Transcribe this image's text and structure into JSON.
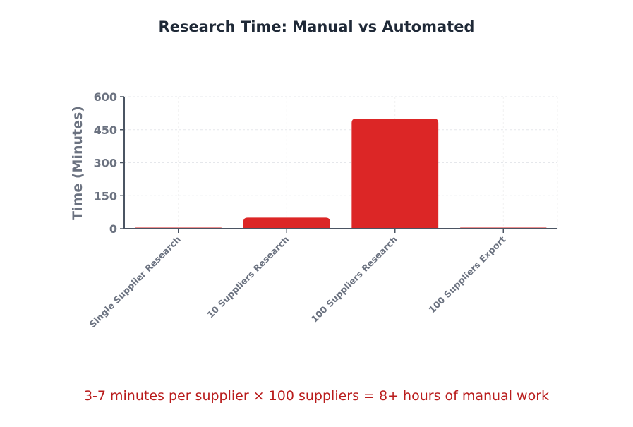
{
  "chart_data": {
    "type": "bar",
    "title": "Research Time: Manual vs Automated",
    "xlabel": "",
    "ylabel": "Time (Minutes)",
    "categories": [
      "Single Supplier Research",
      "10 Suppliers Research",
      "100 Suppliers Research",
      "100 Suppliers Export"
    ],
    "values": [
      5,
      50,
      500,
      2
    ],
    "ylim": [
      0,
      600
    ],
    "yticks": [
      0,
      150,
      300,
      450,
      600
    ],
    "grid": true,
    "legend": "none",
    "bar_color": "#dc2626"
  },
  "footnote": "3-7 minutes per supplier × 100 suppliers = 8+ hours of manual work"
}
